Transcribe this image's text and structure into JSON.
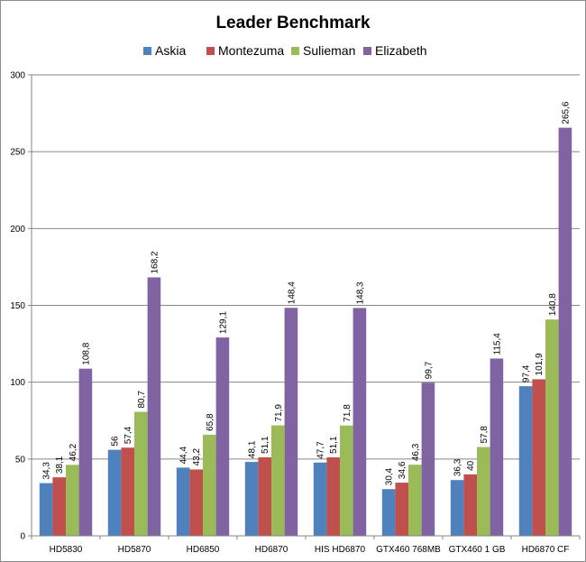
{
  "chart_data": {
    "type": "bar",
    "title": "Leader Benchmark",
    "xlabel": "",
    "ylabel": "",
    "ylim": [
      0,
      300
    ],
    "y_ticks": [
      0,
      50,
      100,
      150,
      200,
      250,
      300
    ],
    "grid": true,
    "legend_position": "top",
    "categories": [
      "HD5830",
      "HD5870",
      "HD6850",
      "HD6870",
      "HIS HD6870",
      "GTX460 768MB",
      "GTX460 1 GB",
      "HD6870 CF"
    ],
    "series": [
      {
        "name": "Askia",
        "color": "#4f81bd",
        "values": [
          34.3,
          56,
          44.4,
          48.1,
          47.7,
          30.4,
          36.3,
          97.4
        ],
        "labels": [
          "34,3",
          "56",
          "44,4",
          "48,1",
          "47,7",
          "30,4",
          "36,3",
          "97,4"
        ]
      },
      {
        "name": "Montezuma",
        "color": "#c0504d",
        "values": [
          38.1,
          57.4,
          43.2,
          51.1,
          51.1,
          34.6,
          40,
          101.9
        ],
        "labels": [
          "38,1",
          "57,4",
          "43,2",
          "51,1",
          "51,1",
          "34,6",
          "40",
          "101,9"
        ]
      },
      {
        "name": "Sulieman",
        "color": "#9bbb59",
        "values": [
          46.2,
          80.7,
          65.8,
          71.9,
          71.8,
          46.3,
          57.8,
          140.8
        ],
        "labels": [
          "46,2",
          "80,7",
          "65,8",
          "71,9",
          "71,8",
          "46,3",
          "57,8",
          "140,8"
        ]
      },
      {
        "name": "Elizabeth",
        "color": "#8064a2",
        "values": [
          108.8,
          168.2,
          129.1,
          148.4,
          148.3,
          99.7,
          115.4,
          265.6
        ],
        "labels": [
          "108,8",
          "168,2",
          "129,1",
          "148,4",
          "148,3",
          "99,7",
          "115,4",
          "265,6"
        ]
      }
    ],
    "colors": {
      "grid": "#868686",
      "axis": "#868686",
      "text": "#000000"
    }
  }
}
